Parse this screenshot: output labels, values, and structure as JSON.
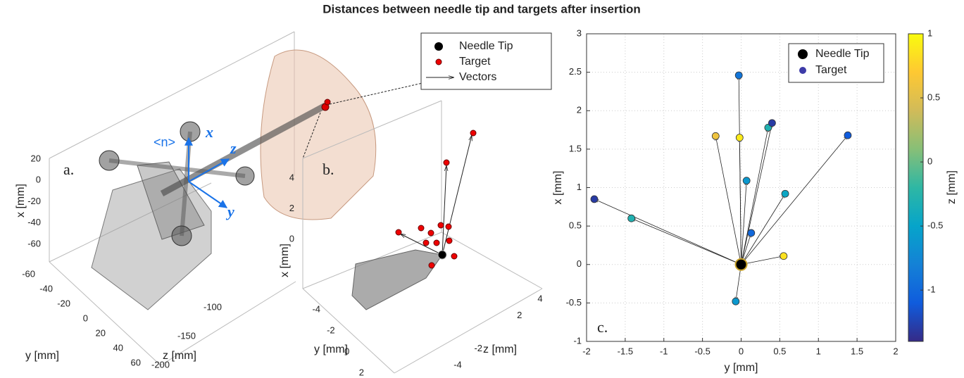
{
  "title": "Distances between needle tip and targets after insertion",
  "chart_data": [
    {
      "type": "scene3d",
      "annotation": "a.",
      "frame_label": "<n>",
      "frame_axes": [
        "x",
        "z",
        "y"
      ],
      "xlabel": "x [mm]",
      "ylabel": "y [mm]",
      "zlabel": "z [mm]",
      "xlim": [
        -60,
        20
      ],
      "ylim": [
        -60,
        60
      ],
      "zlim": [
        -200,
        -100
      ],
      "xticks": [
        20,
        0,
        -20,
        -40,
        -60
      ],
      "yticks": [
        -60,
        -40,
        -20,
        0,
        20,
        40,
        60
      ],
      "zticks": [
        -100,
        -150,
        -200
      ]
    },
    {
      "type": "scene3d",
      "annotation": "b.",
      "xlabel": "x [mm]",
      "ylabel": "y [mm]",
      "zlabel": "z [mm]",
      "xlim": [
        0,
        4
      ],
      "ylim": [
        -4,
        2
      ],
      "zlim": [
        -4,
        4
      ],
      "xticks": [
        4,
        2,
        0
      ],
      "yticks": [
        -4,
        -2,
        0,
        2
      ],
      "zticks": [
        -4,
        -2,
        2,
        4
      ],
      "legend": [
        "Needle Tip",
        "Target",
        "Vectors"
      ]
    },
    {
      "type": "scatter",
      "annotation": "c.",
      "xlabel": "y [mm]",
      "ylabel": "x [mm]",
      "colorbar_label": "z [mm]",
      "xlim": [
        -2,
        2
      ],
      "ylim": [
        -1,
        3
      ],
      "xticks": [
        -2,
        -1.5,
        -1,
        -0.5,
        0,
        0.5,
        1,
        1.5,
        2
      ],
      "yticks": [
        -1,
        -0.5,
        0,
        0.5,
        1,
        1.5,
        2,
        2.5,
        3
      ],
      "grid": true,
      "colormap": "parula",
      "clim": [
        -1.4,
        1
      ],
      "cticks": [
        -1,
        -0.5,
        0,
        0.5,
        1
      ],
      "series": [
        {
          "name": "Needle Tip",
          "color": "#000000",
          "x": [
            0
          ],
          "values": [
            0
          ]
        },
        {
          "name": "Target",
          "color": "#3d3ba8",
          "x": [
            -1.9,
            -1.42,
            -0.33,
            -0.07,
            -0.03,
            -0.02,
            0.07,
            0.13,
            0.35,
            0.4,
            0.55,
            0.57,
            1.38
          ],
          "values": [
            0.85,
            0.6,
            1.67,
            -0.48,
            2.46,
            1.65,
            1.09,
            0.41,
            1.78,
            1.84,
            0.11,
            0.92,
            1.68
          ],
          "z": [
            -1.3,
            -0.3,
            0.6,
            -0.6,
            -0.9,
            0.9,
            -0.6,
            -1.0,
            -0.3,
            -1.3,
            0.85,
            -0.45,
            -1.1
          ]
        }
      ]
    }
  ]
}
